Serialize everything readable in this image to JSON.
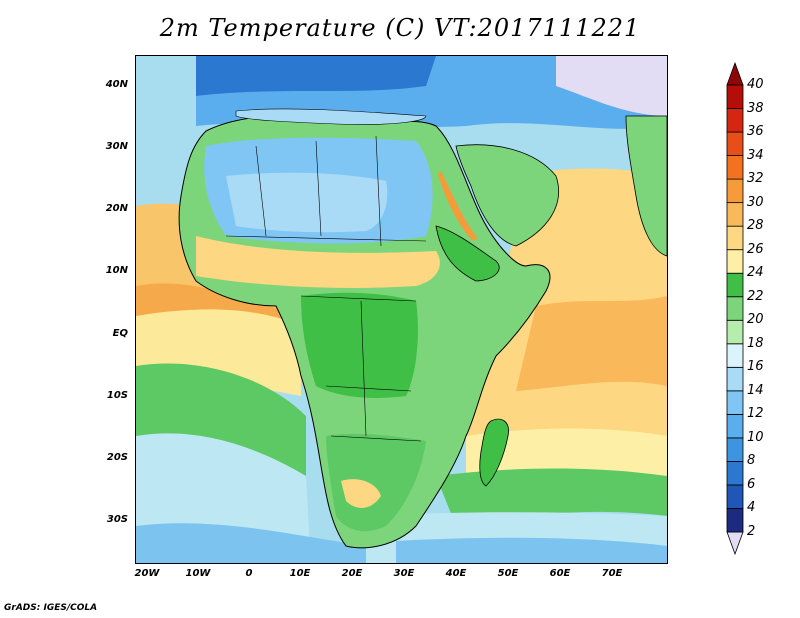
{
  "title": "2m Temperature (C) VT:2017111221",
  "credit": "GrADS: IGES/COLA",
  "map": {
    "region": "Africa",
    "variable": "2m temperature",
    "units": "C",
    "lon_range": [
      -22,
      80
    ],
    "lat_range": [
      -37,
      45
    ],
    "y_ticks": [
      "40N",
      "30N",
      "20N",
      "10N",
      "EQ",
      "10S",
      "20S",
      "30S"
    ],
    "x_ticks": [
      "20W",
      "10W",
      "0",
      "10E",
      "20E",
      "30E",
      "40E",
      "50E",
      "60E",
      "70E"
    ]
  },
  "colorbar": {
    "levels": [
      "2",
      "4",
      "6",
      "8",
      "10",
      "12",
      "14",
      "16",
      "18",
      "20",
      "22",
      "24",
      "26",
      "28",
      "30",
      "32",
      "34",
      "36",
      "38",
      "40"
    ],
    "colors": [
      "#e3dcf5",
      "#1c2a7f",
      "#1f56b8",
      "#2b78d0",
      "#3d95e2",
      "#5aaeee",
      "#80c6f4",
      "#aadbf6",
      "#dbf3fb",
      "#b6ecad",
      "#7cd57a",
      "#3fbf46",
      "#fdf0a6",
      "#fdd782",
      "#f9b85a",
      "#f79a3a",
      "#f2721f",
      "#e84e17",
      "#d42611",
      "#b40d0a",
      "#8f0606"
    ]
  }
}
